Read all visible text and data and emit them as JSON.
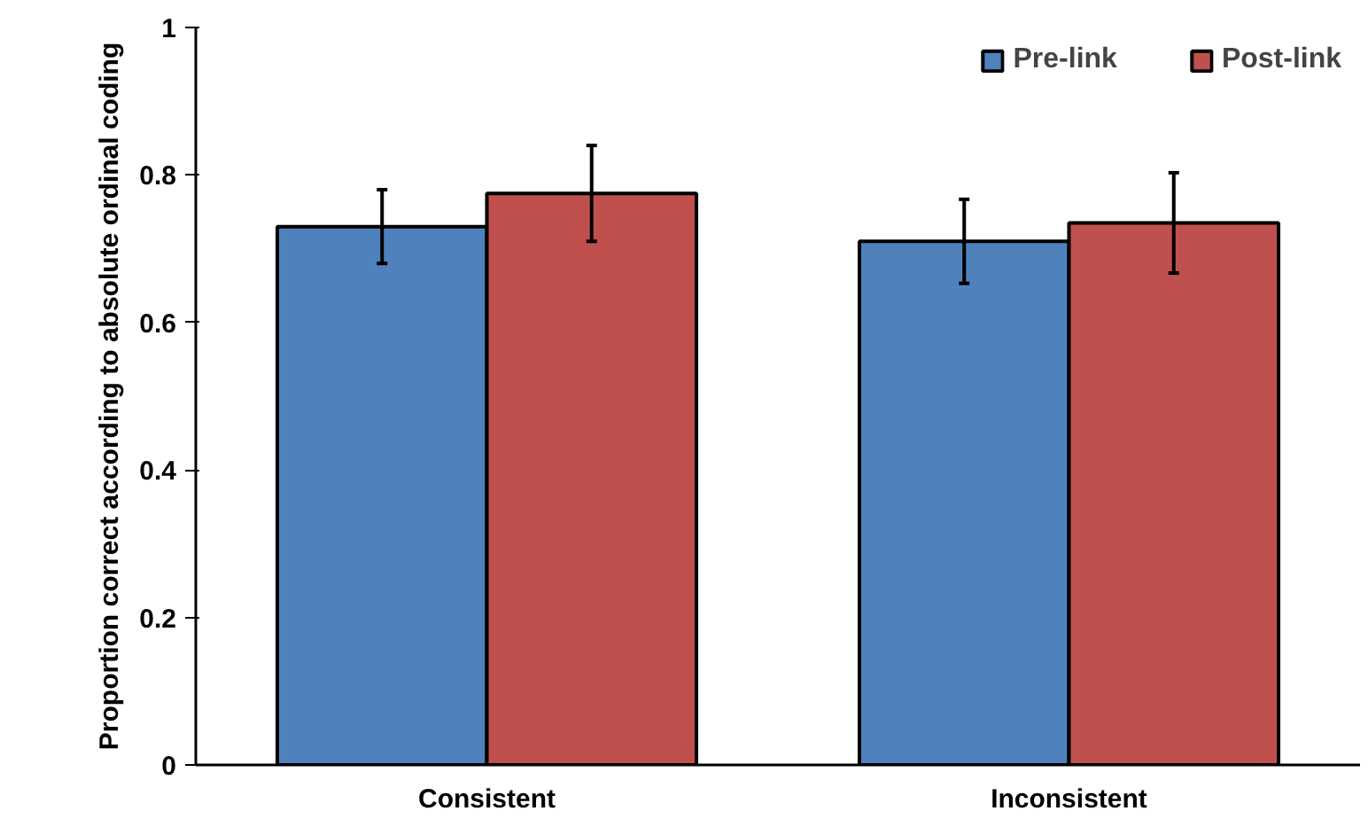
{
  "chart_data": {
    "type": "bar",
    "ylabel": "Proportion correct according to absolute ordinal coding",
    "categories": [
      "Consistent",
      "Inconsistent"
    ],
    "series": [
      {
        "name": "Pre-link",
        "color": "#4f81bd",
        "values": [
          0.73,
          0.71
        ],
        "errors": [
          0.05,
          0.057
        ]
      },
      {
        "name": "Post-link",
        "color": "#c0504d",
        "values": [
          0.775,
          0.735
        ],
        "errors": [
          0.065,
          0.068
        ]
      }
    ],
    "ylim": [
      0,
      1
    ],
    "yticks": [
      0,
      0.2,
      0.4,
      0.6,
      0.8,
      1
    ],
    "legend": "top right",
    "grid": false
  }
}
